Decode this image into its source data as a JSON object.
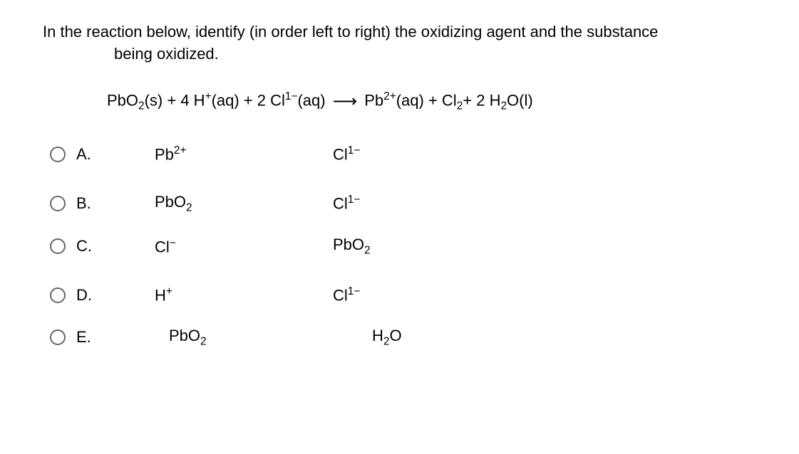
{
  "question": {
    "line1": "In the reaction below, identify (in order left to right) the oxidizing agent and the substance",
    "line2": "being oxidized."
  },
  "equation": {
    "r1": "PbO",
    "r1_sub": "2",
    "r1_state": "(s)",
    "plus1": " + 4 H",
    "r2_sup": "+",
    "r2_state": "(aq)",
    "plus2": " +  2 Cl",
    "r3_sup": "1−",
    "r3_state": "(aq)",
    "p1": "Pb",
    "p1_sup": "2+",
    "p1_state": "(aq)",
    "plus3": " + Cl",
    "p2_sub": "2",
    "plus4": "+ 2 H",
    "p3_sub": "2",
    "p3_rest": "O(l)"
  },
  "options": [
    {
      "letter": "A.",
      "col1_html": "Pb<sup>2+</sup>",
      "col2_html": "Cl<sup>1−</sup>"
    },
    {
      "letter": "B.",
      "col1_html": "PbO<sub>2</sub>",
      "col2_html": "Cl<sup>1−</sup>"
    },
    {
      "letter": "C.",
      "col1_html": "Cl<sup>−</sup>",
      "col2_html": "PbO<sub>2</sub>"
    },
    {
      "letter": "D.",
      "col1_html": "H<sup>+</sup>",
      "col2_html": "Cl<sup>1−</sup>"
    },
    {
      "letter": "E.",
      "col1_html": "PbO<sub>2</sub>",
      "col2_html": "H<sub>2</sub>O"
    }
  ],
  "layout": {
    "row_gaps": [
      "normal",
      "spaced",
      "tight",
      "spaced",
      "tight"
    ]
  }
}
